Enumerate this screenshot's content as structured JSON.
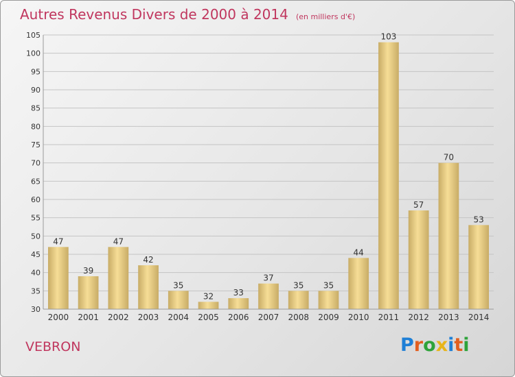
{
  "title": "Autres Revenus Divers de 2000 à 2014",
  "unit": "(en milliers d'€)",
  "commune": "VEBRON",
  "brand": {
    "text": "Proxiti",
    "letter_colors": [
      "#1e7fd6",
      "#e25f1f",
      "#2ea33a",
      "#e8b51a",
      "#1e7fd6",
      "#e25f1f",
      "#2ea33a"
    ]
  },
  "chart_data": {
    "type": "bar",
    "categories": [
      "2000",
      "2001",
      "2002",
      "2003",
      "2004",
      "2005",
      "2006",
      "2007",
      "2008",
      "2009",
      "2010",
      "2011",
      "2012",
      "2013",
      "2014"
    ],
    "values": [
      47,
      39,
      47,
      42,
      35,
      32,
      33,
      37,
      35,
      35,
      44,
      103,
      57,
      70,
      53
    ],
    "ylim": [
      30,
      105
    ],
    "yticks": [
      30,
      35,
      40,
      45,
      50,
      55,
      60,
      65,
      70,
      75,
      80,
      85,
      90,
      95,
      100,
      105
    ],
    "grid": "horizontal",
    "bar_color_light": "#f6dd96",
    "bar_color_dark": "#c8ac66",
    "grid_color": "#c4c4c4"
  }
}
